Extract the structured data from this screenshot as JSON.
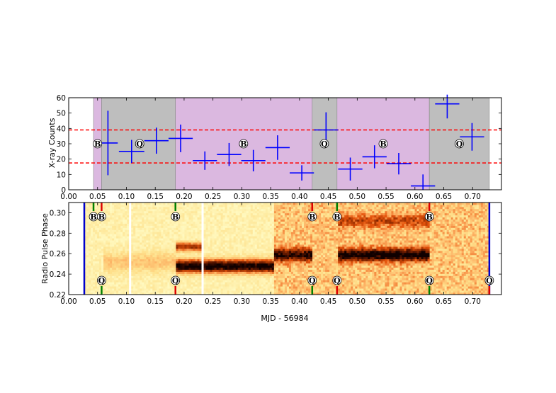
{
  "chart_data": [
    {
      "type": "scatter",
      "panel": "top",
      "xlim": [
        0.0,
        0.75
      ],
      "ylim": [
        0,
        60
      ],
      "xticks": [
        "0.00",
        "0.05",
        "0.10",
        "0.15",
        "0.20",
        "0.25",
        "0.30",
        "0.35",
        "0.40",
        "0.45",
        "0.50",
        "0.55",
        "0.60",
        "0.65",
        "0.70"
      ],
      "yticks": [
        "0",
        "10",
        "20",
        "30",
        "40",
        "50",
        "60"
      ],
      "ylabel": "X-ray Counts",
      "grid": false,
      "colors": {
        "points": "#0000ff",
        "thresholds": "#ff0000",
        "B_mode": "#dbb8e0",
        "Q_mode": "#bebebe"
      },
      "mode_spans": [
        {
          "mode": "B",
          "x0": 0.043,
          "x1": 0.057
        },
        {
          "mode": "Q",
          "x0": 0.057,
          "x1": 0.185
        },
        {
          "mode": "B",
          "x0": 0.185,
          "x1": 0.422
        },
        {
          "mode": "Q",
          "x0": 0.422,
          "x1": 0.465
        },
        {
          "mode": "B",
          "x0": 0.465,
          "x1": 0.625
        },
        {
          "mode": "Q",
          "x0": 0.625,
          "x1": 0.729
        }
      ],
      "thresholds": [
        39,
        17.5
      ],
      "points": [
        {
          "x": 0.068,
          "y": 30.5,
          "xerr": 0.017,
          "yerr": 21.0
        },
        {
          "x": 0.109,
          "y": 25.0,
          "xerr": 0.022,
          "yerr": 7.5
        },
        {
          "x": 0.152,
          "y": 32.0,
          "xerr": 0.021,
          "yerr": 8.5
        },
        {
          "x": 0.194,
          "y": 33.5,
          "xerr": 0.021,
          "yerr": 9.0
        },
        {
          "x": 0.236,
          "y": 19.0,
          "xerr": 0.021,
          "yerr": 6.0
        },
        {
          "x": 0.278,
          "y": 23.0,
          "xerr": 0.021,
          "yerr": 7.5
        },
        {
          "x": 0.32,
          "y": 19.0,
          "xerr": 0.021,
          "yerr": 7.0
        },
        {
          "x": 0.362,
          "y": 27.5,
          "xerr": 0.021,
          "yerr": 8.0
        },
        {
          "x": 0.404,
          "y": 11.0,
          "xerr": 0.021,
          "yerr": 5.0
        },
        {
          "x": 0.446,
          "y": 39.0,
          "xerr": 0.021,
          "yerr": 11.5
        },
        {
          "x": 0.488,
          "y": 13.5,
          "xerr": 0.021,
          "yerr": 7.5
        },
        {
          "x": 0.53,
          "y": 21.5,
          "xerr": 0.021,
          "yerr": 7.5
        },
        {
          "x": 0.572,
          "y": 17.0,
          "xerr": 0.021,
          "yerr": 7.0
        },
        {
          "x": 0.614,
          "y": 2.5,
          "xerr": 0.021,
          "yerr": 7.5
        },
        {
          "x": 0.656,
          "y": 56.0,
          "xerr": 0.021,
          "yerr": 9.5
        },
        {
          "x": 0.699,
          "y": 34.5,
          "xerr": 0.021,
          "yerr": 9.0
        }
      ],
      "mode_labels": [
        {
          "text": "B",
          "x": 0.05,
          "y": 30
        },
        {
          "text": "Q",
          "x": 0.123,
          "y": 30
        },
        {
          "text": "B",
          "x": 0.303,
          "y": 30
        },
        {
          "text": "Q",
          "x": 0.443,
          "y": 30
        },
        {
          "text": "B",
          "x": 0.545,
          "y": 30
        },
        {
          "text": "Q",
          "x": 0.677,
          "y": 30
        }
      ]
    },
    {
      "type": "heatmap",
      "panel": "bottom",
      "xlim": [
        0.0,
        0.75
      ],
      "ylim": [
        0.22,
        0.31
      ],
      "xticks": [
        "0.00",
        "0.05",
        "0.10",
        "0.15",
        "0.20",
        "0.25",
        "0.30",
        "0.35",
        "0.40",
        "0.45",
        "0.50",
        "0.55",
        "0.60",
        "0.65",
        "0.70"
      ],
      "yticks": [
        "0.22",
        "0.24",
        "0.26",
        "0.28",
        "0.30"
      ],
      "xlabel": "MJD - 56984",
      "ylabel": "Radio Pulse Phase",
      "colormap": [
        "#ffffcc",
        "#fee08b",
        "#fdae61",
        "#e6550d",
        "#a63603",
        "#5a1500",
        "#100000"
      ],
      "observation_bounds": [
        0.027,
        0.729
      ],
      "gaps": [
        0.107,
        0.232
      ],
      "noise_change_at": 0.355,
      "pulse_bands": [
        {
          "x0": 0.185,
          "x1": 0.355,
          "center": 0.248,
          "width": 0.006,
          "strength": 1.0
        },
        {
          "x0": 0.185,
          "x1": 0.232,
          "center": 0.267,
          "width": 0.004,
          "strength": 0.6
        },
        {
          "x0": 0.355,
          "x1": 0.422,
          "center": 0.259,
          "width": 0.006,
          "strength": 0.75
        },
        {
          "x0": 0.465,
          "x1": 0.625,
          "center": 0.259,
          "width": 0.006,
          "strength": 0.85
        },
        {
          "x0": 0.465,
          "x1": 0.625,
          "center": 0.292,
          "width": 0.006,
          "strength": 0.35
        },
        {
          "x0": 0.06,
          "x1": 0.185,
          "center": 0.252,
          "width": 0.009,
          "strength": 0.18
        }
      ],
      "markers_top": [
        {
          "x": 0.027,
          "color": "#0000cc",
          "label": ""
        },
        {
          "x": 0.043,
          "color": "#008000",
          "label": "B"
        },
        {
          "x": 0.057,
          "color": "#dd0000",
          "label": "B"
        },
        {
          "x": 0.185,
          "color": "#008000",
          "label": "B"
        },
        {
          "x": 0.422,
          "color": "#dd0000",
          "label": "B"
        },
        {
          "x": 0.465,
          "color": "#008000",
          "label": "B"
        },
        {
          "x": 0.625,
          "color": "#dd0000",
          "label": "B"
        },
        {
          "x": 0.729,
          "color": "#0000cc",
          "label": ""
        }
      ],
      "markers_bottom": [
        {
          "x": 0.057,
          "color": "#008000",
          "label": "Q"
        },
        {
          "x": 0.185,
          "color": "#dd0000",
          "label": "Q"
        },
        {
          "x": 0.422,
          "color": "#008000",
          "label": "Q"
        },
        {
          "x": 0.465,
          "color": "#dd0000",
          "label": "Q"
        },
        {
          "x": 0.625,
          "color": "#008000",
          "label": "Q"
        },
        {
          "x": 0.729,
          "color": "#dd0000",
          "label": "Q"
        }
      ]
    }
  ]
}
